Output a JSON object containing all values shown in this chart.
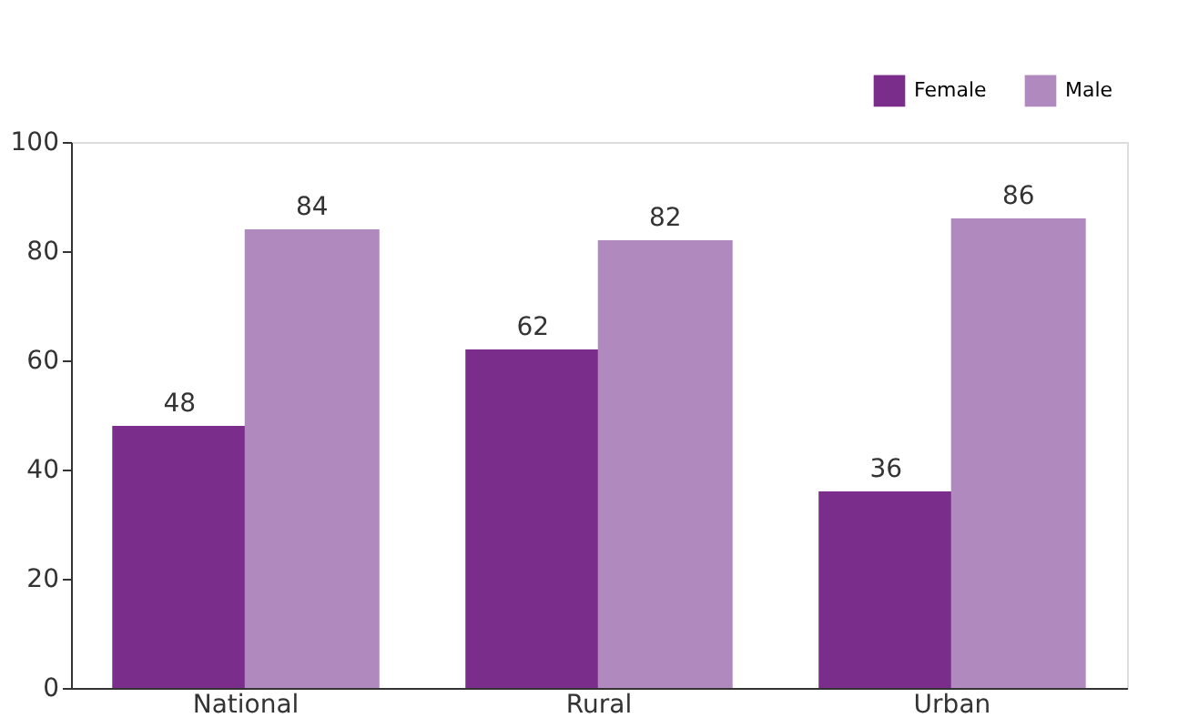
{
  "chart_data": {
    "type": "bar",
    "categories": [
      "National",
      "Rural",
      "Urban"
    ],
    "series": [
      {
        "name": "Female",
        "color": "#7b2d8b",
        "values": [
          48,
          62,
          36
        ]
      },
      {
        "name": "Male",
        "color": "#b08abe",
        "values": [
          84,
          82,
          86
        ]
      }
    ],
    "ylim": [
      0,
      100
    ],
    "yticks": [
      0,
      20,
      40,
      60,
      80,
      100
    ],
    "grid": false,
    "legend": "top right",
    "data_labels": true
  }
}
